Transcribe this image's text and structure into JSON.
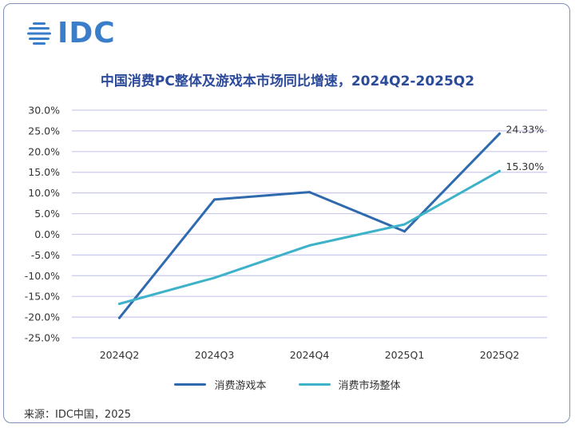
{
  "brand": {
    "logo_text": "IDC",
    "logo_color": "#3a7dc9"
  },
  "title": "中国消费PC整体及游戏本市场同比增速，2024Q2-2025Q2",
  "title_color": "#2c4a9a",
  "source": "来源：IDC中国，2025",
  "chart_data": {
    "type": "line",
    "title": "中国消费PC整体及游戏本市场同比增速，2024Q2-2025Q2",
    "categories": [
      "2024Q2",
      "2024Q3",
      "2024Q4",
      "2025Q1",
      "2025Q2"
    ],
    "y_ticks": [
      "30.0%",
      "25.0%",
      "20.0%",
      "15.0%",
      "10.0%",
      "5.0%",
      "0.0%",
      "-5.0%",
      "-10.0%",
      "-15.0%",
      "-20.0%",
      "-25.0%"
    ],
    "ylim": [
      -25,
      30
    ],
    "ystep": 5,
    "grid": true,
    "legend_position": "bottom",
    "series": [
      {
        "name": "消费游戏本",
        "color": "#2e6aad",
        "values": [
          -20.2,
          8.4,
          10.2,
          0.7,
          24.33
        ],
        "end_label": "24.33%"
      },
      {
        "name": "消费市场整体",
        "color": "#3db2c8",
        "values": [
          -16.8,
          -10.5,
          -2.7,
          2.4,
          15.3
        ],
        "end_label": "15.30%"
      }
    ]
  }
}
